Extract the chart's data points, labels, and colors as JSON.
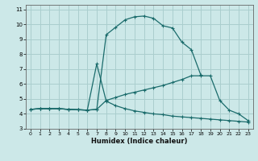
{
  "xlabel": "Humidex (Indice chaleur)",
  "bg_color": "#cce8e8",
  "grid_color": "#aacece",
  "line_color": "#1a6b6b",
  "xlim": [
    -0.5,
    23.5
  ],
  "ylim": [
    3.0,
    11.3
  ],
  "xticks": [
    0,
    1,
    2,
    3,
    4,
    5,
    6,
    7,
    8,
    9,
    10,
    11,
    12,
    13,
    14,
    15,
    16,
    17,
    18,
    19,
    20,
    21,
    22,
    23
  ],
  "yticks": [
    3,
    4,
    5,
    6,
    7,
    8,
    9,
    10,
    11
  ],
  "line1_x": [
    0,
    1,
    2,
    3,
    4,
    5,
    6,
    7,
    8,
    9,
    10,
    11,
    12,
    13,
    14,
    15,
    16,
    17,
    18,
    19,
    20,
    21,
    22,
    23
  ],
  "line1_y": [
    4.3,
    4.35,
    4.35,
    4.35,
    4.3,
    4.28,
    4.25,
    4.3,
    9.3,
    9.8,
    10.3,
    10.5,
    10.55,
    10.4,
    9.9,
    9.75,
    8.8,
    8.3,
    6.6,
    null,
    null,
    null,
    null,
    null
  ],
  "line2_x": [
    0,
    1,
    2,
    3,
    4,
    5,
    6,
    7,
    8,
    9,
    10,
    11,
    12,
    13,
    14,
    15,
    16,
    17,
    18,
    19,
    20,
    21,
    22,
    23
  ],
  "line2_y": [
    4.3,
    4.35,
    4.35,
    4.35,
    4.3,
    4.28,
    4.25,
    4.3,
    4.9,
    5.1,
    5.3,
    5.45,
    5.6,
    5.75,
    5.9,
    6.1,
    6.3,
    6.55,
    6.55,
    6.55,
    4.9,
    4.25,
    4.0,
    3.55
  ],
  "line3_x": [
    0,
    1,
    2,
    3,
    4,
    5,
    6,
    7,
    8,
    9,
    10,
    11,
    12,
    13,
    14,
    15,
    16,
    17,
    18,
    19,
    20,
    21,
    22,
    23
  ],
  "line3_y": [
    4.3,
    4.35,
    4.35,
    4.35,
    4.3,
    4.28,
    4.25,
    7.35,
    4.85,
    4.55,
    4.35,
    4.2,
    4.1,
    4.0,
    3.95,
    3.85,
    3.8,
    3.75,
    3.7,
    3.65,
    3.6,
    3.55,
    3.5,
    3.45
  ]
}
